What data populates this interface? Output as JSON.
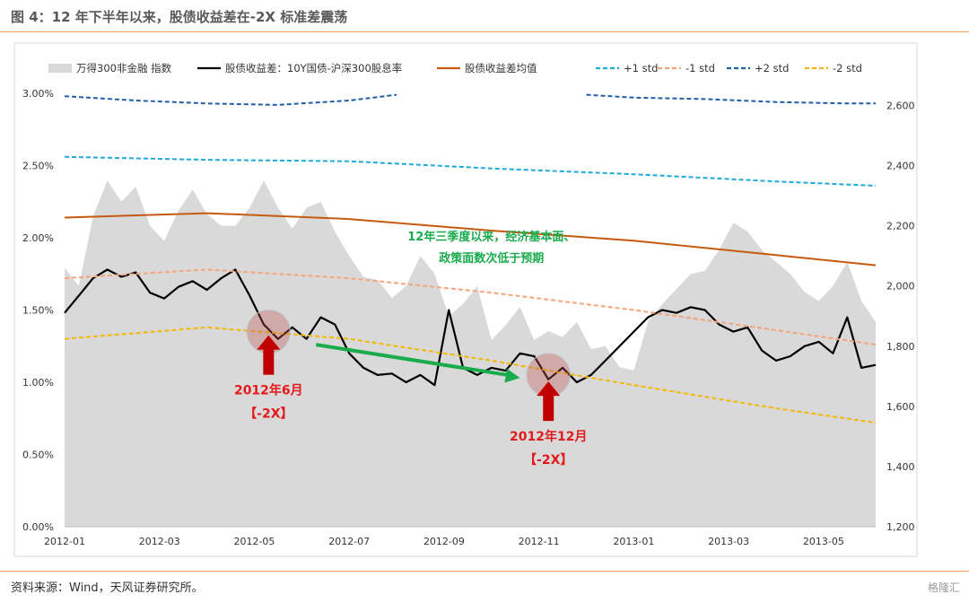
{
  "header": {
    "title": "图 4：12 年下半年以来，股债收益差在-2X 标准差震荡"
  },
  "footer": {
    "source": "资料来源：Wind，天风证券研究所。",
    "watermark": "格隆汇"
  },
  "chart_data": {
    "type": "line",
    "title": "",
    "x_labels": [
      "2012-01",
      "2012-03",
      "2012-05",
      "2012-07",
      "2012-09",
      "2012-11",
      "2013-01",
      "2013-03",
      "2013-05"
    ],
    "x_range": [
      "2012-01",
      "2013-06"
    ],
    "y_left": {
      "label": "",
      "ticks": [
        "0.00%",
        "0.50%",
        "1.00%",
        "1.50%",
        "2.00%",
        "2.50%",
        "3.00%"
      ],
      "range": [
        0,
        3
      ]
    },
    "y_right": {
      "label": "",
      "ticks": [
        "1,200",
        "1,400",
        "1,600",
        "1,800",
        "2,000",
        "2,200",
        "2,400",
        "2,600"
      ],
      "range": [
        1200,
        2640
      ]
    },
    "legend_position": "top",
    "grid": false,
    "series": [
      {
        "name": "万得300非金融 指数",
        "type": "area",
        "axis": "right",
        "color": "#d9d9d9",
        "x": [
          0,
          0.3,
          0.6,
          0.9,
          1.2,
          1.5,
          1.8,
          2.1,
          2.4,
          2.7,
          3.0,
          3.3,
          3.6,
          3.9,
          4.2,
          4.5,
          4.8,
          5.1,
          5.4,
          5.7,
          6.0,
          6.3,
          6.6,
          6.9,
          7.2,
          7.5,
          7.8,
          8.1,
          8.4,
          8.7,
          9.0,
          9.3,
          9.6,
          9.9,
          10.2,
          10.5,
          10.8,
          11.1,
          11.4,
          11.7,
          12.0,
          12.3,
          12.6,
          12.9,
          13.2,
          13.5,
          13.8,
          14.1,
          14.4,
          14.7,
          15.0,
          15.3,
          15.6,
          15.9,
          16.2,
          16.5,
          16.8,
          17.1
        ],
        "values": [
          2060,
          2000,
          2230,
          2350,
          2280,
          2330,
          2200,
          2150,
          2250,
          2320,
          2240,
          2200,
          2200,
          2260,
          2350,
          2260,
          2190,
          2260,
          2280,
          2180,
          2100,
          2030,
          2020,
          1960,
          2000,
          2100,
          2040,
          1900,
          1940,
          2000,
          1820,
          1870,
          1930,
          1820,
          1850,
          1830,
          1880,
          1790,
          1800,
          1730,
          1720,
          1880,
          1940,
          1990,
          2040,
          2050,
          2120,
          2210,
          2180,
          2120,
          2080,
          2040,
          1980,
          1950,
          2000,
          2080,
          1950,
          1880
        ]
      },
      {
        "name": "股债收益差：10Y国债-沪深300股息率",
        "type": "line",
        "axis": "left",
        "color": "#000000",
        "x": [
          0,
          0.3,
          0.6,
          0.9,
          1.2,
          1.5,
          1.8,
          2.1,
          2.4,
          2.7,
          3.0,
          3.3,
          3.6,
          3.9,
          4.2,
          4.5,
          4.8,
          5.1,
          5.4,
          5.7,
          6.0,
          6.3,
          6.6,
          6.9,
          7.2,
          7.5,
          7.8,
          8.1,
          8.4,
          8.7,
          9.0,
          9.3,
          9.6,
          9.9,
          10.2,
          10.5,
          10.8,
          11.1,
          11.4,
          11.7,
          12.0,
          12.3,
          12.6,
          12.9,
          13.2,
          13.5,
          13.8,
          14.1,
          14.4,
          14.7,
          15.0,
          15.3,
          15.6,
          15.9,
          16.2,
          16.5,
          16.8,
          17.1
        ],
        "values": [
          1.48,
          1.6,
          1.72,
          1.78,
          1.73,
          1.76,
          1.62,
          1.58,
          1.66,
          1.7,
          1.64,
          1.72,
          1.78,
          1.6,
          1.4,
          1.3,
          1.38,
          1.3,
          1.45,
          1.4,
          1.2,
          1.1,
          1.05,
          1.06,
          1.0,
          1.05,
          0.98,
          1.5,
          1.1,
          1.05,
          1.1,
          1.08,
          1.2,
          1.18,
          1.02,
          1.1,
          1.0,
          1.05,
          1.15,
          1.25,
          1.35,
          1.45,
          1.5,
          1.48,
          1.52,
          1.5,
          1.4,
          1.35,
          1.38,
          1.22,
          1.15,
          1.18,
          1.25,
          1.28,
          1.2,
          1.45,
          1.1,
          1.12
        ]
      },
      {
        "name": "股债收益差均值",
        "type": "line",
        "axis": "left",
        "color": "#c55a11",
        "x": [
          0,
          3,
          6,
          9,
          12,
          15,
          17.1
        ],
        "values": [
          2.14,
          2.17,
          2.13,
          2.05,
          1.98,
          1.88,
          1.81
        ]
      },
      {
        "name": "+1 std",
        "type": "line",
        "dash": true,
        "axis": "left",
        "color": "#1fa9dd",
        "x": [
          0,
          3,
          6,
          9,
          12,
          15,
          17.1
        ],
        "values": [
          2.56,
          2.54,
          2.53,
          2.48,
          2.44,
          2.39,
          2.36
        ]
      },
      {
        "name": "-1 std",
        "type": "line",
        "dash": true,
        "axis": "left",
        "color": "#f4a57a",
        "x": [
          0,
          3,
          6,
          9,
          12,
          15,
          17.1
        ],
        "values": [
          1.72,
          1.78,
          1.72,
          1.62,
          1.5,
          1.36,
          1.26
        ]
      },
      {
        "name": "+2 std",
        "type": "line",
        "dash": true,
        "axis": "left",
        "color": "#1f5fa8",
        "x": [
          0,
          1.5,
          3.0,
          4.5,
          6.0,
          7.0,
          11.0,
          12.0,
          13.5,
          15.0,
          16.5,
          17.1
        ],
        "values": [
          2.98,
          2.95,
          2.93,
          2.92,
          2.95,
          2.99,
          2.99,
          2.97,
          2.96,
          2.94,
          2.93,
          2.93
        ]
      },
      {
        "name": "-2 std",
        "type": "line",
        "dash": true,
        "axis": "left",
        "color": "#f5b800",
        "x": [
          0,
          3,
          6,
          9,
          12,
          15,
          17.1
        ],
        "values": [
          1.3,
          1.38,
          1.3,
          1.15,
          0.98,
          0.82,
          0.72
        ]
      }
    ],
    "annotations": [
      {
        "text_lines": [
          "12年三季度以来，经济基本面、",
          "政策面数次低于预期"
        ],
        "color": "#1aab4d",
        "at_x": 9.0,
        "at_y": 1.98
      },
      {
        "type": "arrow",
        "color": "#1aab4d",
        "from_x": 5.3,
        "from_y": 1.26,
        "to_x": 9.6,
        "to_y": 1.03
      },
      {
        "type": "circle",
        "at_x": 4.3,
        "at_y": 1.35,
        "color": "#c0504d"
      },
      {
        "type": "circle",
        "at_x": 10.2,
        "at_y": 1.05,
        "color": "#c0504d"
      },
      {
        "type": "up-arrow",
        "at_x": 4.3,
        "top_y": 1.35,
        "color": "#c00000",
        "text_lines": [
          "2012年6月",
          "【-2X】"
        ]
      },
      {
        "type": "up-arrow",
        "at_x": 10.2,
        "top_y": 1.03,
        "color": "#c00000",
        "text_lines": [
          "2012年12月",
          "【-2X】"
        ]
      }
    ]
  }
}
